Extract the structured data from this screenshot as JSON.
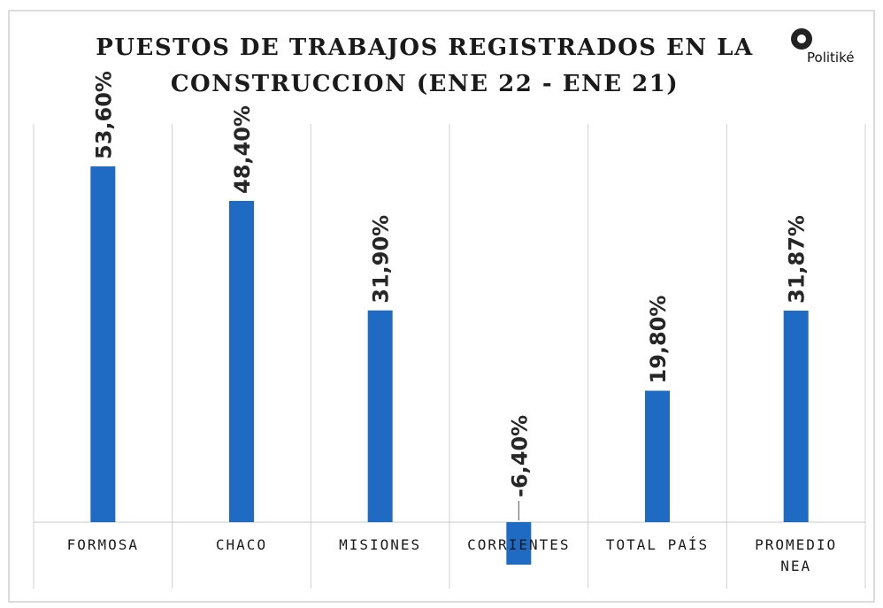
{
  "chart_data": {
    "type": "bar",
    "title_lines": [
      "PUESTOS DE TRABAJOS REGISTRADOS EN LA",
      "CONSTRUCCION (ENE 22 - ENE 21)"
    ],
    "logo": "Politiké",
    "categories": [
      "FORMOSA",
      "CHACO",
      "MISIONES",
      "CORRIENTES",
      "TOTAL PAÍS",
      "PROMEDIO NEA"
    ],
    "values": [
      53.6,
      48.4,
      31.9,
      -6.4,
      19.8,
      31.87
    ],
    "value_labels": [
      "53,60%",
      "48,40%",
      "31,90%",
      "-6,40%",
      "19,80%",
      "31,87%"
    ],
    "color": "#1f6bc4",
    "negative_label_color": "#c00000",
    "ylim": [
      -10,
      60
    ]
  }
}
